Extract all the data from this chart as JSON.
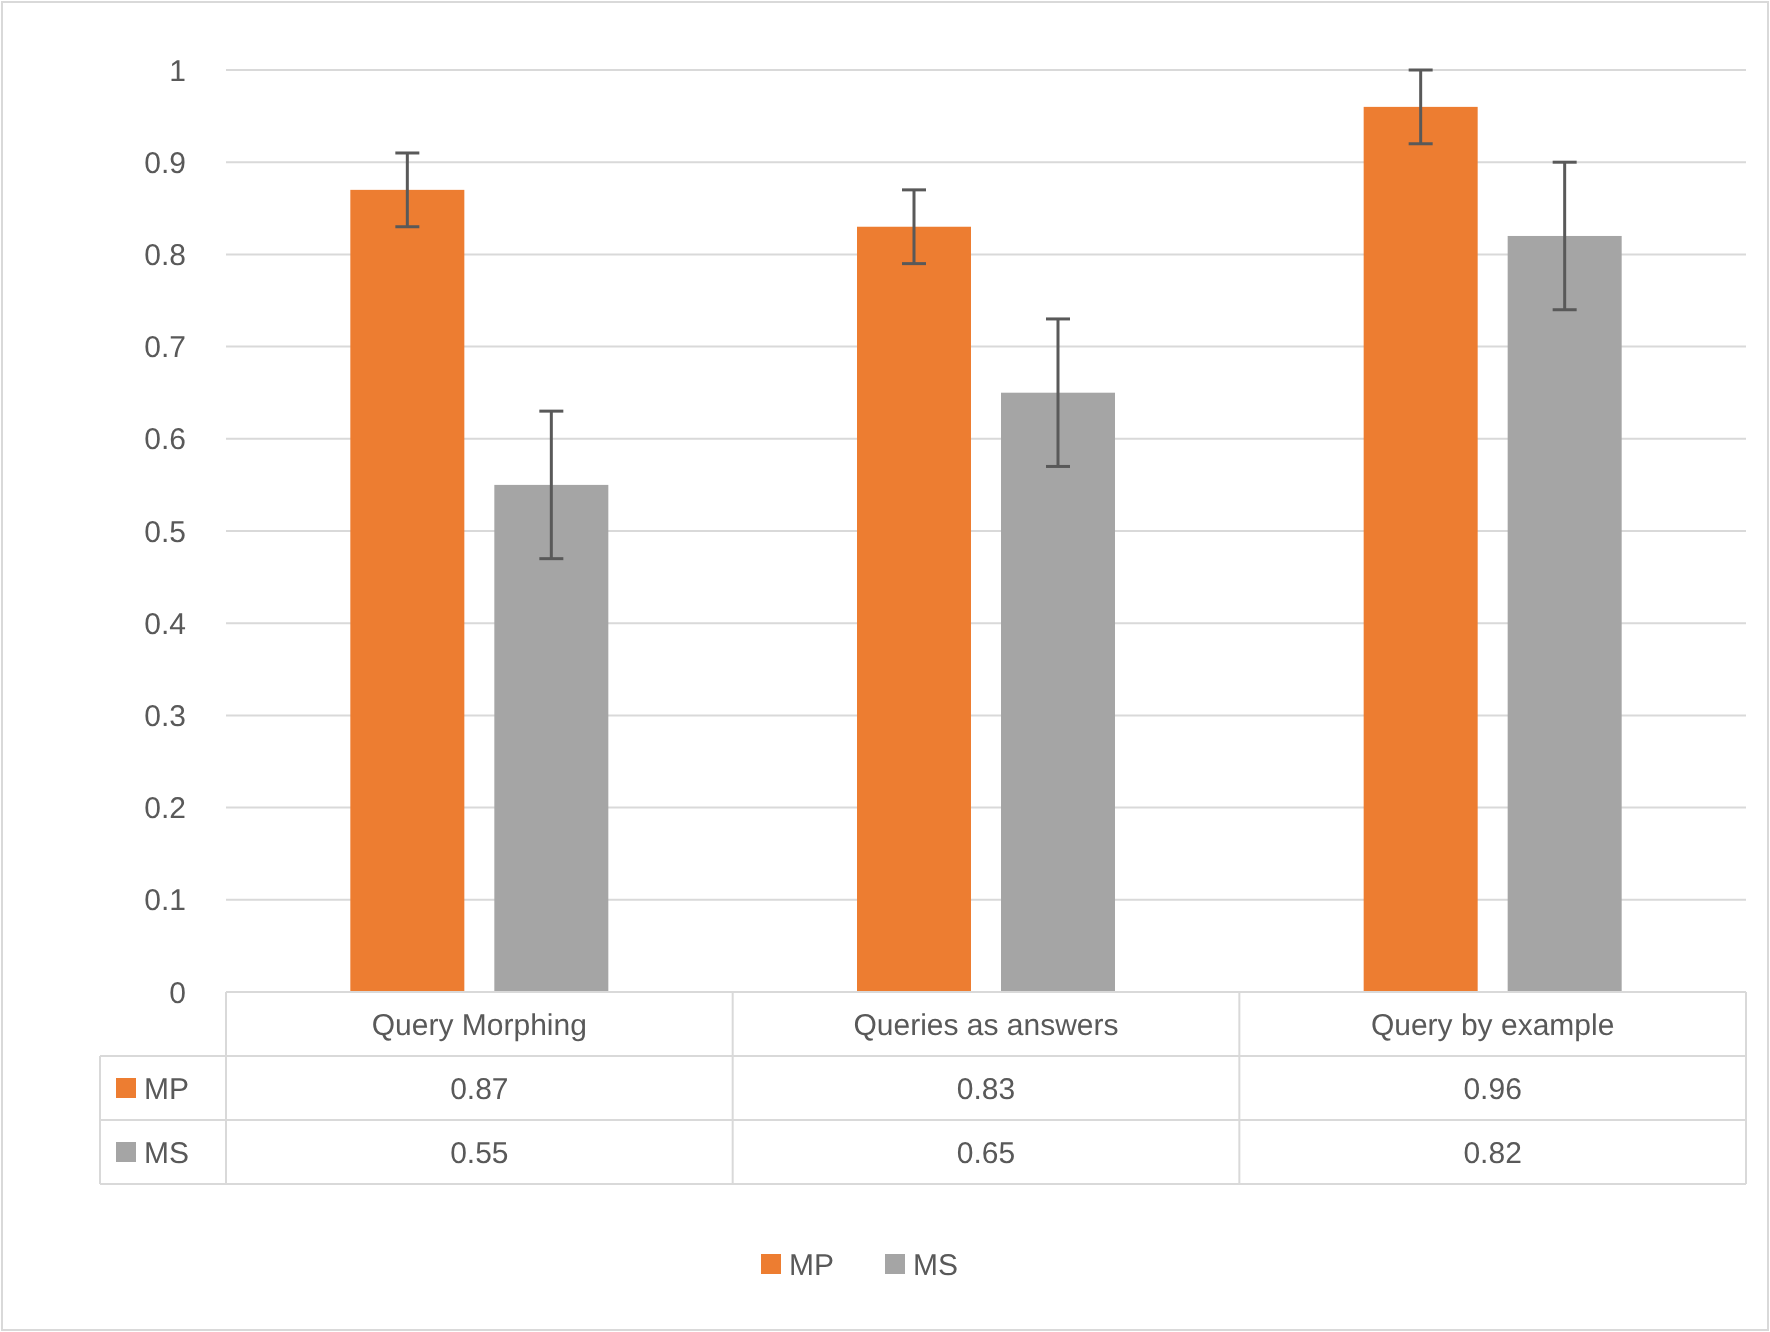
{
  "chart_data": {
    "type": "bar",
    "categories": [
      "Query Morphing",
      "Queries as answers",
      "Query by example"
    ],
    "series": [
      {
        "name": "MP",
        "color": "#ed7d31",
        "values": [
          0.87,
          0.83,
          0.96
        ],
        "errors": [
          0.04,
          0.04,
          0.04
        ]
      },
      {
        "name": "MS",
        "color": "#a5a5a5",
        "values": [
          0.55,
          0.65,
          0.82
        ],
        "errors": [
          0.08,
          0.08,
          0.08
        ]
      }
    ],
    "ylim": [
      0,
      1
    ],
    "yticks": [
      0,
      0.1,
      0.2,
      0.3,
      0.4,
      0.5,
      0.6,
      0.7,
      0.8,
      0.9,
      1
    ],
    "grid": "y",
    "legend": "bottom",
    "data_labels": true
  }
}
